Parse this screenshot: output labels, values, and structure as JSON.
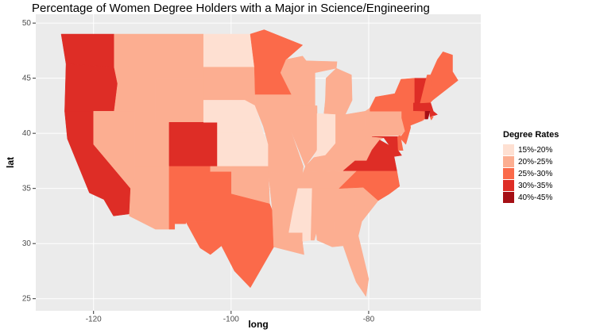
{
  "chart_data": {
    "type": "choropleth",
    "title": "Percentage of Women Degree Holders with a Major in Science/Engineering",
    "x_label": "long",
    "y_label": "lat",
    "xlim": [
      -128.4,
      -63.7
    ],
    "ylim": [
      23.9,
      50.8
    ],
    "xticks": [
      -120,
      -100,
      -80
    ],
    "yticks": [
      25,
      30,
      35,
      40,
      45,
      50
    ],
    "grid": true,
    "legend": {
      "title": "Degree Rates",
      "position": "right",
      "items": [
        {
          "label": "15%-20%",
          "color": "#fee0d2"
        },
        {
          "label": "20%-25%",
          "color": "#fcae91"
        },
        {
          "label": "25%-30%",
          "color": "#fb6a4a"
        },
        {
          "label": "30%-35%",
          "color": "#de2d26"
        },
        {
          "label": "40%-45%",
          "color": "#a50f15"
        }
      ]
    },
    "region_classes": [
      "30%-35%",
      "30%-35%",
      "30%-35%",
      "20%-25%",
      "20%-25%",
      "20%-25%",
      "20%-25%",
      "20%-25%",
      "30%-35%",
      "20%-25%",
      "25%-30%",
      "15%-20%",
      "20%-25%",
      "15%-20%",
      "15%-20%",
      "20%-25%",
      "25%-30%",
      "25%-30%",
      "20%-25%",
      "20%-25%",
      "20%-25%",
      "20%-25%",
      "20%-25%",
      "20%-25%",
      "20%-25%",
      "20%-25%",
      "15%-20%",
      "20%-25%",
      "20%-25%",
      "20%-25%",
      "15%-20%",
      "20%-25%",
      "20%-25%",
      "20%-25%",
      "20%-25%",
      "20%-25%",
      "25%-30%",
      "30%-35%",
      "20%-25%",
      "30%-35%",
      "25%-30%",
      "25%-30%",
      "25%-30%",
      "25%-30%",
      "30%-35%",
      "40%-45%",
      "30%-35%",
      "25%-30%",
      "25%-30%",
      "25%-30%"
    ]
  }
}
